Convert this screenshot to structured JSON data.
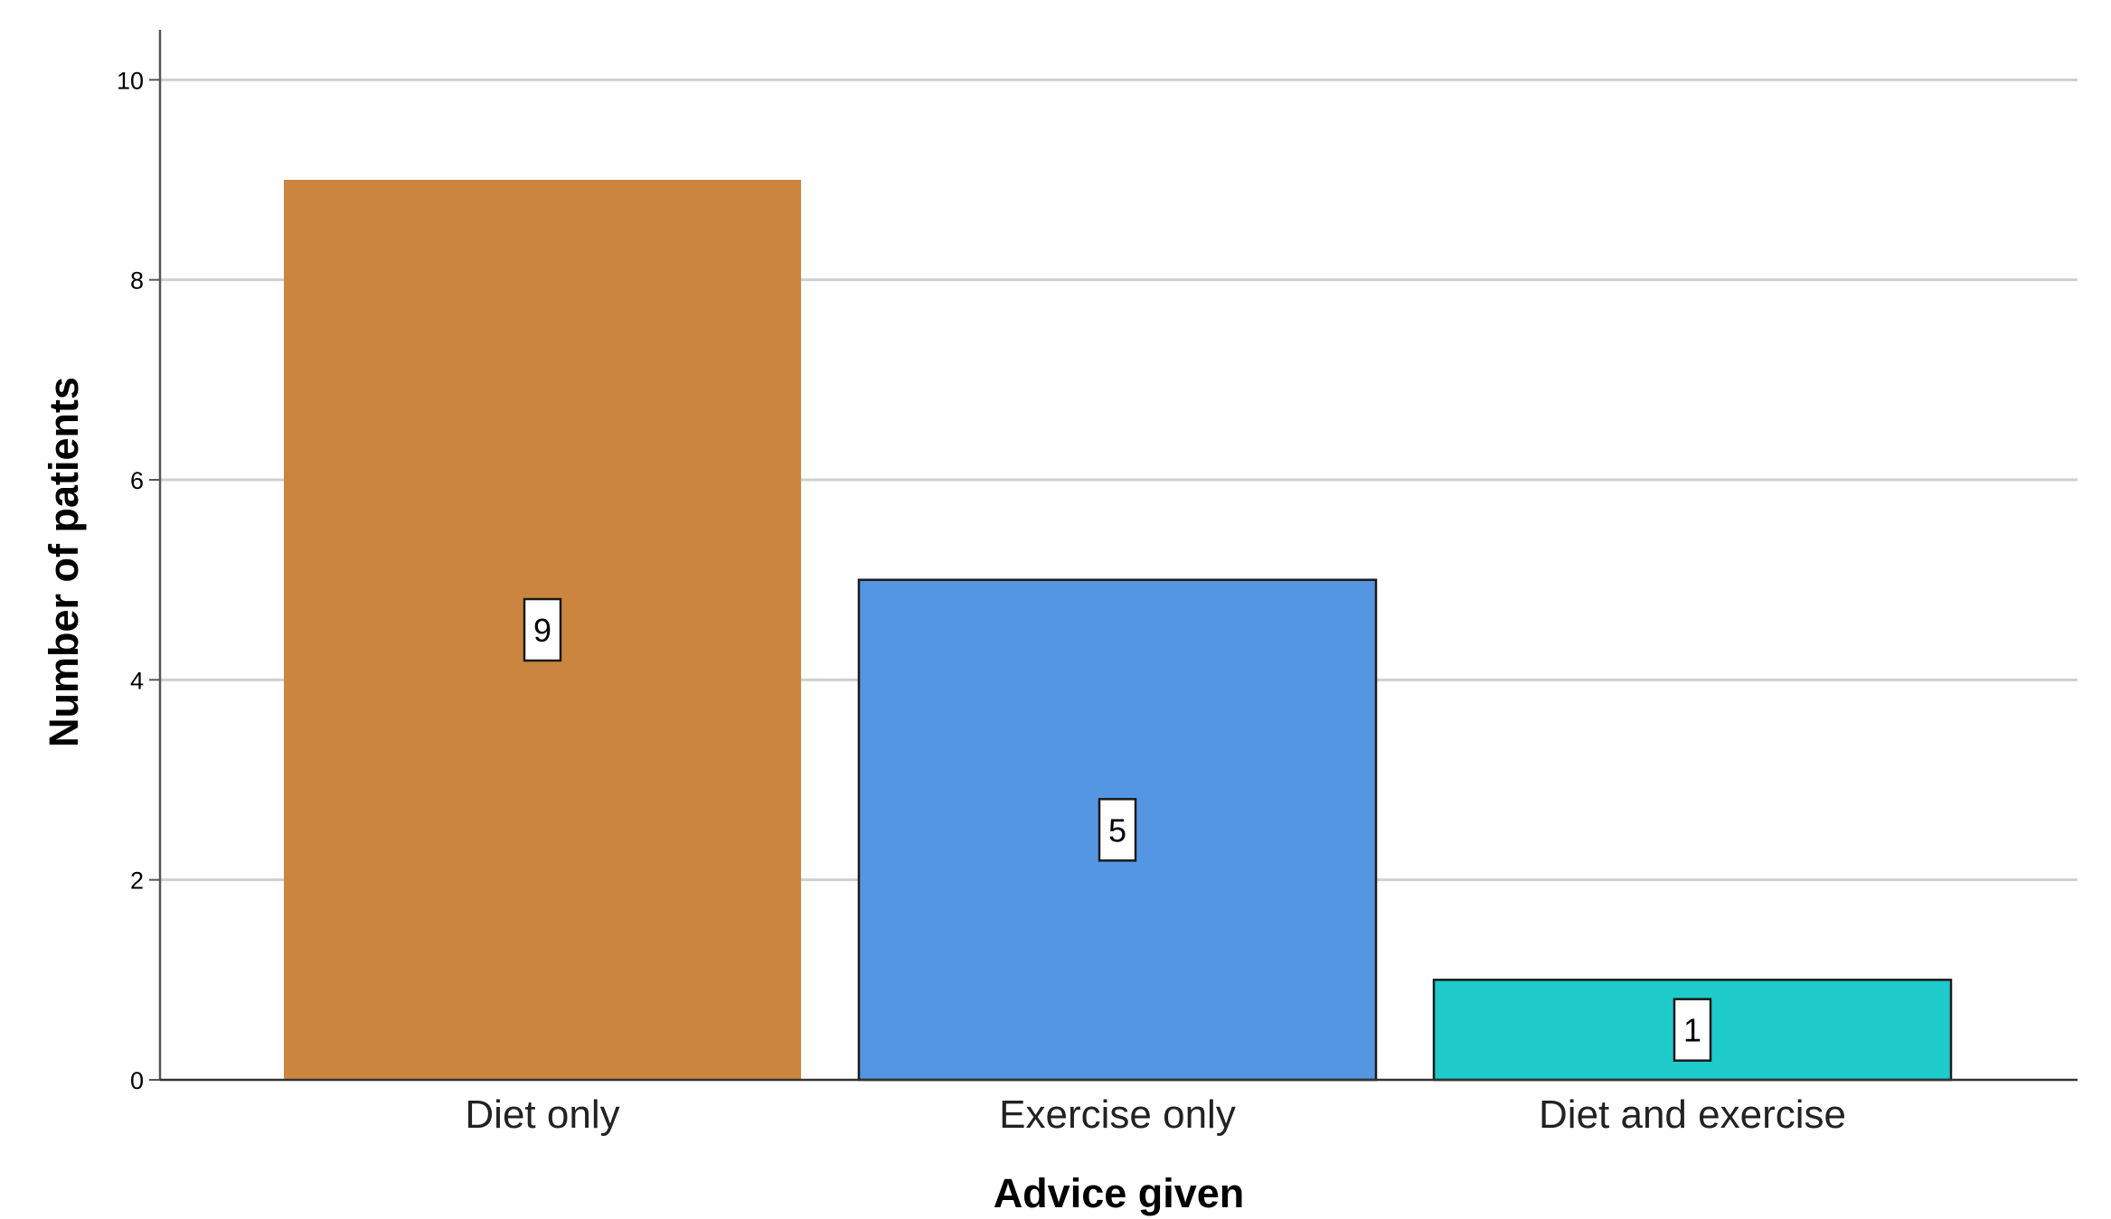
{
  "chart_data": {
    "type": "bar",
    "categories": [
      "Diet only",
      "Exercise only",
      "Diet and exercise"
    ],
    "values": [
      9,
      5,
      1
    ],
    "data_labels": [
      "9",
      "5",
      "1"
    ],
    "colors": [
      "#CC853F",
      "#5596E2",
      "#1FCBCB"
    ],
    "xlabel": "Advice given",
    "ylabel": "Number of patients",
    "ylim": [
      0,
      10.5
    ],
    "yticks": [
      0,
      2,
      4,
      6,
      8,
      10
    ],
    "ytick_labels": [
      "0",
      "2",
      "4",
      "6",
      "8",
      "10"
    ],
    "grid": true,
    "legend": "none"
  }
}
